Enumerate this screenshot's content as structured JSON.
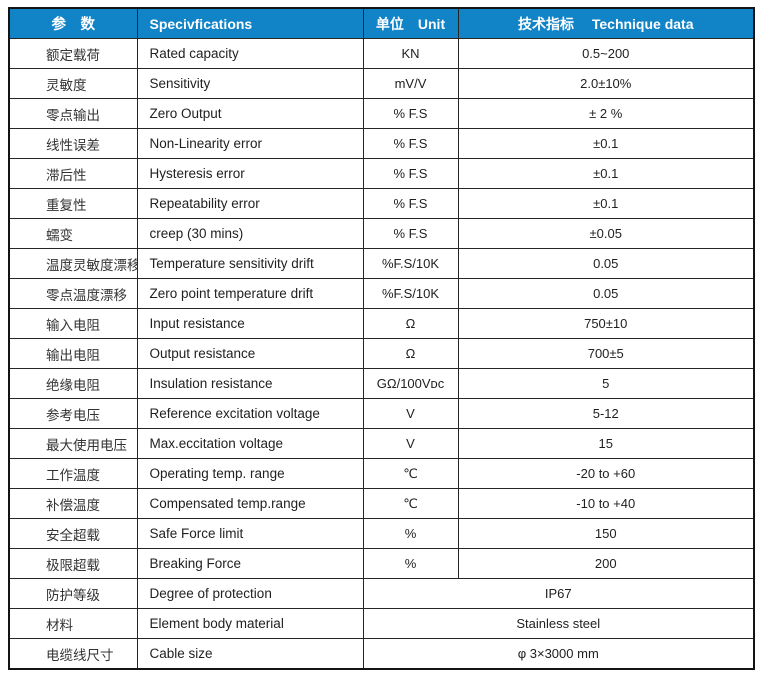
{
  "colors": {
    "header_bg": "#1183C7",
    "header_text": "#FFFFFF",
    "border": "#262626",
    "body_text": "#212121"
  },
  "header": {
    "param": "参　数",
    "spec": "Specivfications",
    "unit": "单位　Unit",
    "tech": "技术指标　 Technique data"
  },
  "table": {
    "rows": [
      {
        "param_cn": "额定载荷",
        "spec_en": "Rated capacity",
        "unit": "KN",
        "value": "0.5~200"
      },
      {
        "param_cn": "灵敏度",
        "spec_en": "Sensitivity",
        "unit": "mV/V",
        "value": "2.0±10%"
      },
      {
        "param_cn": "零点输出",
        "spec_en": "Zero Output",
        "unit": "% F.S",
        "value": "± 2 %"
      },
      {
        "param_cn": "线性误差",
        "spec_en": "Non-Linearity error",
        "unit": "% F.S",
        "value": "±0.1"
      },
      {
        "param_cn": "滞后性",
        "spec_en": "Hysteresis error",
        "unit": "% F.S",
        "value": "±0.1"
      },
      {
        "param_cn": "重复性",
        "spec_en": "Repeatability error",
        "unit": "% F.S",
        "value": "±0.1"
      },
      {
        "param_cn": "蠕变",
        "spec_en": "creep (30 mins)",
        "unit": "% F.S",
        "value": "±0.05"
      },
      {
        "param_cn": "温度灵敏度漂移",
        "spec_en": "Temperature sensitivity drift",
        "unit": "%F.S/10K",
        "value": "0.05"
      },
      {
        "param_cn": "零点温度漂移",
        "spec_en": "Zero point temperature drift",
        "unit": "%F.S/10K",
        "value": "0.05"
      },
      {
        "param_cn": "输入电阻",
        "spec_en": "Input resistance",
        "unit": "Ω",
        "value": "750±10"
      },
      {
        "param_cn": "输出电阻",
        "spec_en": "Output resistance",
        "unit": "Ω",
        "value": "700±5"
      },
      {
        "param_cn": "绝缘电阻",
        "spec_en": "Insulation resistance",
        "unit": "GΩ/100Vᴅᴄ",
        "value": "5"
      },
      {
        "param_cn": "参考电压",
        "spec_en": "Reference excitation voltage",
        "unit": "V",
        "value": "5-12"
      },
      {
        "param_cn": "最大使用电压",
        "spec_en": "Max.eccitation voltage",
        "unit": "V",
        "value": "15"
      },
      {
        "param_cn": "工作温度",
        "spec_en": "Operating temp. range",
        "unit": "℃",
        "value": "-20 to +60"
      },
      {
        "param_cn": "补偿温度",
        "spec_en": "Compensated temp.range",
        "unit": "℃",
        "value": "-10 to +40"
      },
      {
        "param_cn": "安全超载",
        "spec_en": "Safe Force limit",
        "unit": "%",
        "value": "150"
      },
      {
        "param_cn": "极限超载",
        "spec_en": "Breaking Force",
        "unit": "%",
        "value": "200"
      },
      {
        "param_cn": "防护等级",
        "spec_en": "Degree of protection",
        "unit": null,
        "value": "IP67",
        "merged": true
      },
      {
        "param_cn": "材料",
        "spec_en": "Element body material",
        "unit": null,
        "value": "Stainless steel",
        "merged": true
      },
      {
        "param_cn": "电缆线尺寸",
        "spec_en": "Cable size",
        "unit": null,
        "value": "φ 3×3000 mm",
        "merged": true
      }
    ]
  }
}
